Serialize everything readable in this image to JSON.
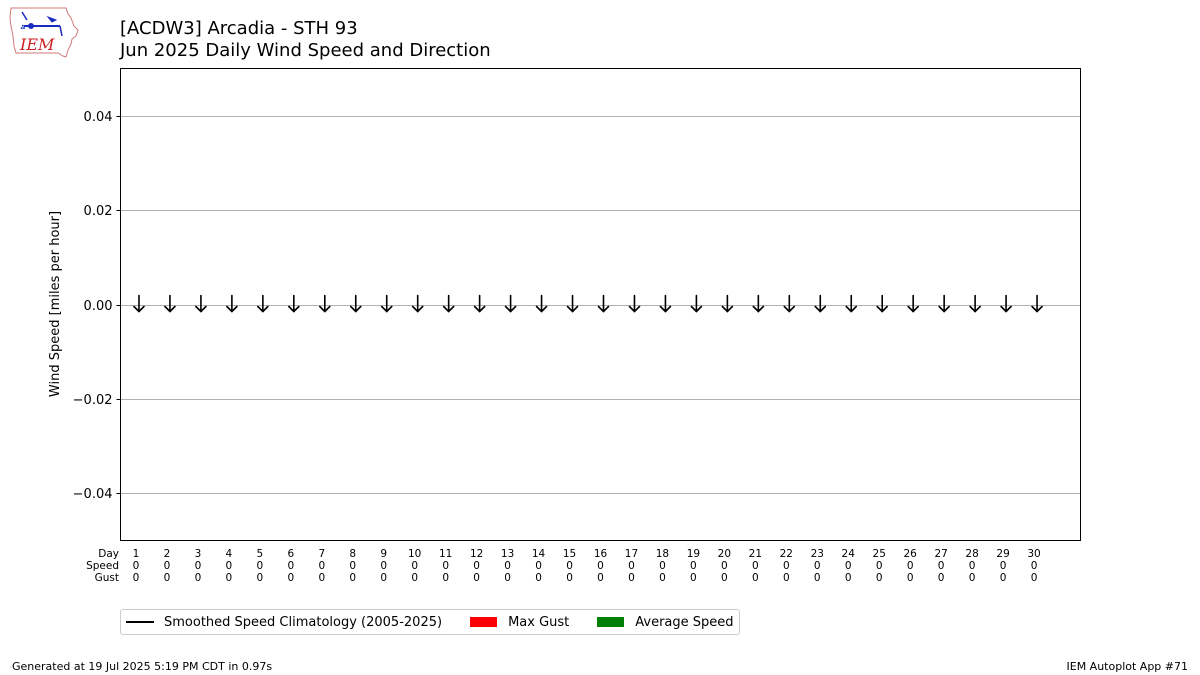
{
  "logo": {
    "text": "IEM",
    "color": "#cc2222",
    "icon": "iem-iowa-logo-icon"
  },
  "titles": {
    "line1": "[ACDW3] Arcadia - STH 93",
    "line2": "Jun 2025 Daily Wind Speed and Direction"
  },
  "chart_data": {
    "type": "line",
    "ylabel": "Wind Speed [miles per hour]",
    "xlabel": "",
    "ylim": [
      -0.05,
      0.05
    ],
    "xlim": [
      0.5,
      31.5
    ],
    "yticks": [
      -0.04,
      -0.02,
      0.0,
      0.02,
      0.04
    ],
    "ytick_labels": [
      "−0.04",
      "−0.02",
      "0.00",
      "0.02",
      "0.04"
    ],
    "grid": "horizontal",
    "table_row_labels": [
      "Day",
      "Speed",
      "Gust"
    ],
    "days": [
      1,
      2,
      3,
      4,
      5,
      6,
      7,
      8,
      9,
      10,
      11,
      12,
      13,
      14,
      15,
      16,
      17,
      18,
      19,
      20,
      21,
      22,
      23,
      24,
      25,
      26,
      27,
      28,
      29,
      30
    ],
    "avg_speed": [
      0,
      0,
      0,
      0,
      0,
      0,
      0,
      0,
      0,
      0,
      0,
      0,
      0,
      0,
      0,
      0,
      0,
      0,
      0,
      0,
      0,
      0,
      0,
      0,
      0,
      0,
      0,
      0,
      0,
      0
    ],
    "max_gust": [
      0,
      0,
      0,
      0,
      0,
      0,
      0,
      0,
      0,
      0,
      0,
      0,
      0,
      0,
      0,
      0,
      0,
      0,
      0,
      0,
      0,
      0,
      0,
      0,
      0,
      0,
      0,
      0,
      0,
      0
    ],
    "arrow_direction": "down",
    "legend": {
      "placement": "bottom",
      "entries": [
        {
          "label": "Smoothed Speed Climatology (2005-2025)",
          "kind": "line",
          "color": "#000000"
        },
        {
          "label": "Max Gust",
          "kind": "patch",
          "color": "#ff0000"
        },
        {
          "label": "Average Speed",
          "kind": "patch",
          "color": "#008000"
        }
      ]
    }
  },
  "footer": {
    "left": "Generated at 19 Jul 2025 5:19 PM CDT in 0.97s",
    "right": "IEM Autoplot App #71"
  }
}
